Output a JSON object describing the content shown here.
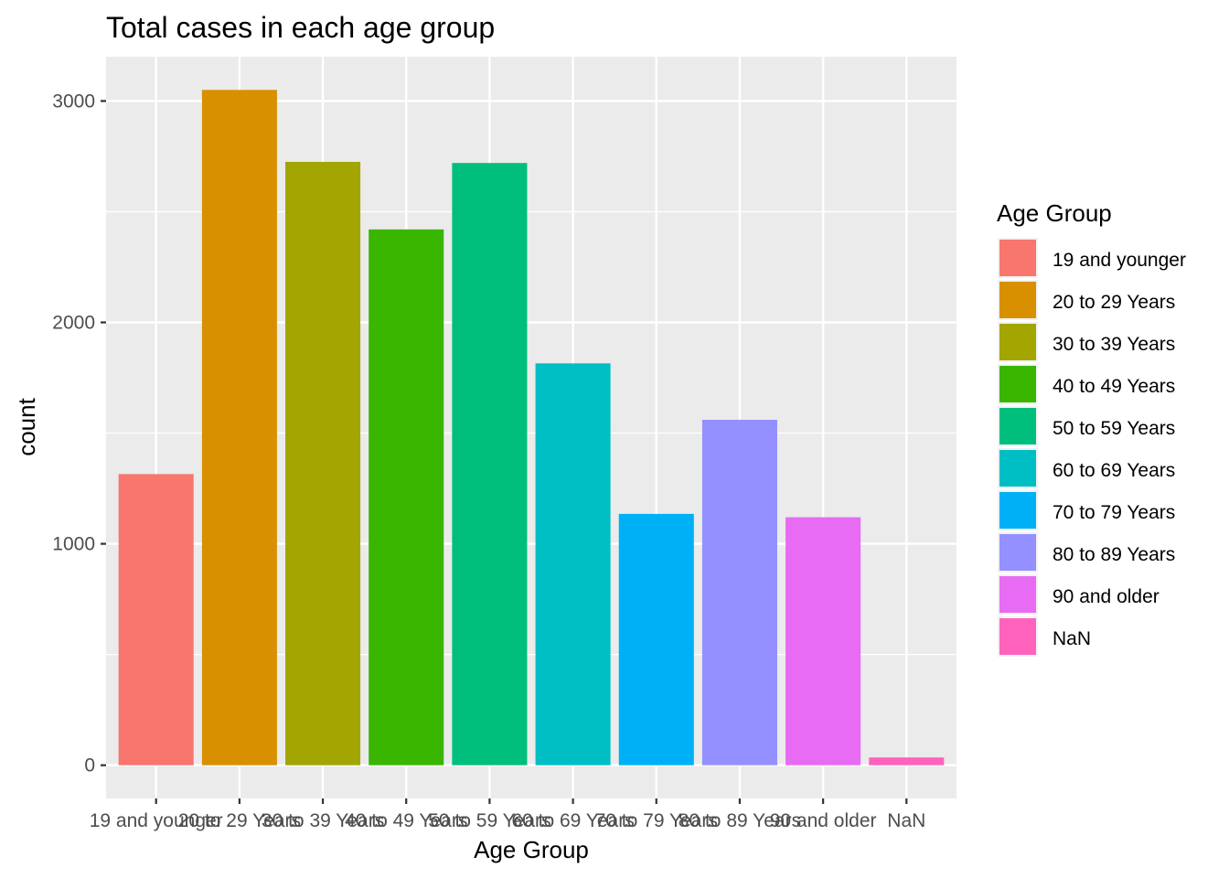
{
  "chart_data": {
    "type": "bar",
    "title": "Total cases in each age group",
    "xlabel": "Age Group",
    "ylabel": "count",
    "categories": [
      "19 and younger",
      "20 to 29 Years",
      "30 to 39 Years",
      "40 to 49 Years",
      "50 to 59 Years",
      "60 to 69 Years",
      "70 to 79 Years",
      "80 to 89 Years",
      "90 and older",
      "NaN"
    ],
    "values": [
      1315,
      3050,
      2725,
      2420,
      2720,
      1815,
      1135,
      1560,
      1120,
      35
    ],
    "colors": [
      "#F8766D",
      "#D89000",
      "#A3A500",
      "#39B600",
      "#00BF7D",
      "#00BFC4",
      "#00B0F6",
      "#9590FF",
      "#E76BF3",
      "#FF62BC"
    ],
    "ylim": [
      -150,
      3200
    ],
    "yticks": [
      0,
      1000,
      2000,
      3000
    ],
    "ytick_labels": [
      "0",
      "1000",
      "2000",
      "3000"
    ],
    "grid": true,
    "panel_background": "#EBEBEB",
    "legend": {
      "title": "Age Group",
      "placement": "right",
      "entries": [
        "19 and younger",
        "20 to 29 Years",
        "30 to 39 Years",
        "40 to 49 Years",
        "50 to 59 Years",
        "60 to 69 Years",
        "70 to 79 Years",
        "80 to 89 Years",
        "90 and older",
        "NaN"
      ]
    }
  }
}
